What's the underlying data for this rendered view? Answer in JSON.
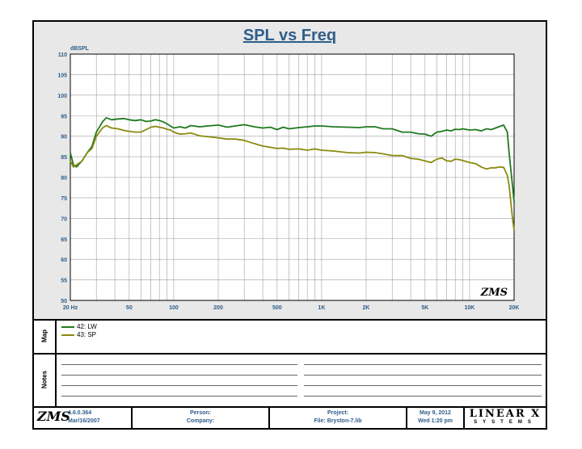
{
  "chart_data": {
    "type": "line",
    "title": "SPL vs Freq",
    "ylabel": "dBSPL",
    "xlabel": "",
    "x_scale": "log",
    "xlim": [
      20,
      20000
    ],
    "ylim": [
      50,
      110
    ],
    "grid": true,
    "legend_placement": "bottom panel",
    "y_ticks": [
      "50",
      "55",
      "60",
      "65",
      "70",
      "75",
      "80",
      "85",
      "90",
      "95",
      "100",
      "105",
      "110"
    ],
    "x_ticks": [
      {
        "value": 20,
        "label": "20 Hz"
      },
      {
        "value": 50,
        "label": "50"
      },
      {
        "value": 100,
        "label": "100"
      },
      {
        "value": 200,
        "label": "200"
      },
      {
        "value": 500,
        "label": "500"
      },
      {
        "value": 1000,
        "label": "1K"
      },
      {
        "value": 2000,
        "label": "2K"
      },
      {
        "value": 5000,
        "label": "5K"
      },
      {
        "value": 10000,
        "label": "10K"
      },
      {
        "value": 20000,
        "label": "20K"
      }
    ],
    "series": [
      {
        "name": "42: LW",
        "color": "#1f7a1f",
        "points": [
          [
            20,
            86
          ],
          [
            21,
            83
          ],
          [
            22,
            82.5
          ],
          [
            24,
            84
          ],
          [
            26,
            86
          ],
          [
            28,
            87.5
          ],
          [
            30,
            91
          ],
          [
            33,
            93.5
          ],
          [
            35,
            94.5
          ],
          [
            38,
            94
          ],
          [
            42,
            94.2
          ],
          [
            46,
            94.3
          ],
          [
            50,
            94
          ],
          [
            55,
            93.8
          ],
          [
            60,
            94
          ],
          [
            65,
            93.6
          ],
          [
            70,
            93.7
          ],
          [
            75,
            94
          ],
          [
            80,
            93.8
          ],
          [
            85,
            93.5
          ],
          [
            90,
            93
          ],
          [
            95,
            92.5
          ],
          [
            100,
            92
          ],
          [
            110,
            92.3
          ],
          [
            120,
            92
          ],
          [
            130,
            92.6
          ],
          [
            150,
            92.3
          ],
          [
            170,
            92.5
          ],
          [
            200,
            92.7
          ],
          [
            230,
            92.2
          ],
          [
            260,
            92.5
          ],
          [
            300,
            92.8
          ],
          [
            350,
            92.3
          ],
          [
            400,
            92
          ],
          [
            450,
            92.2
          ],
          [
            500,
            91.6
          ],
          [
            550,
            92.2
          ],
          [
            600,
            91.8
          ],
          [
            700,
            92.1
          ],
          [
            800,
            92.3
          ],
          [
            900,
            92.5
          ],
          [
            1000,
            92.5
          ],
          [
            1200,
            92.3
          ],
          [
            1500,
            92.2
          ],
          [
            1800,
            92.1
          ],
          [
            2000,
            92.3
          ],
          [
            2300,
            92.3
          ],
          [
            2600,
            91.8
          ],
          [
            3000,
            91.8
          ],
          [
            3500,
            91
          ],
          [
            4000,
            91
          ],
          [
            4500,
            90.6
          ],
          [
            5000,
            90.5
          ],
          [
            5500,
            90
          ],
          [
            6000,
            91
          ],
          [
            6500,
            91.2
          ],
          [
            7000,
            91.5
          ],
          [
            7500,
            91.3
          ],
          [
            8000,
            91.7
          ],
          [
            8500,
            91.6
          ],
          [
            9000,
            91.8
          ],
          [
            10000,
            91.5
          ],
          [
            11000,
            91.6
          ],
          [
            12000,
            91.3
          ],
          [
            13000,
            91.8
          ],
          [
            14000,
            91.6
          ],
          [
            15000,
            92
          ],
          [
            16000,
            92.4
          ],
          [
            17000,
            92.7
          ],
          [
            18000,
            91
          ],
          [
            18500,
            86
          ],
          [
            19000,
            82
          ],
          [
            19500,
            78
          ],
          [
            20000,
            74
          ]
        ]
      },
      {
        "name": "43: SP",
        "color": "#8a8a10",
        "points": [
          [
            20,
            84
          ],
          [
            21,
            82.5
          ],
          [
            22,
            83
          ],
          [
            24,
            84
          ],
          [
            26,
            86
          ],
          [
            28,
            87
          ],
          [
            30,
            90
          ],
          [
            33,
            92
          ],
          [
            35,
            92.6
          ],
          [
            38,
            92
          ],
          [
            42,
            91.8
          ],
          [
            46,
            91.4
          ],
          [
            50,
            91.2
          ],
          [
            55,
            91
          ],
          [
            60,
            91
          ],
          [
            65,
            91.6
          ],
          [
            70,
            92.2
          ],
          [
            75,
            92.4
          ],
          [
            80,
            92.2
          ],
          [
            85,
            92
          ],
          [
            90,
            91.7
          ],
          [
            95,
            91.5
          ],
          [
            100,
            91
          ],
          [
            110,
            90.5
          ],
          [
            120,
            90.6
          ],
          [
            130,
            90.8
          ],
          [
            150,
            90.1
          ],
          [
            170,
            89.9
          ],
          [
            200,
            89.6
          ],
          [
            230,
            89.3
          ],
          [
            260,
            89.3
          ],
          [
            300,
            89
          ],
          [
            350,
            88.2
          ],
          [
            400,
            87.6
          ],
          [
            450,
            87.3
          ],
          [
            500,
            87
          ],
          [
            550,
            87.1
          ],
          [
            600,
            86.8
          ],
          [
            700,
            86.9
          ],
          [
            800,
            86.6
          ],
          [
            900,
            86.9
          ],
          [
            1000,
            86.6
          ],
          [
            1200,
            86.4
          ],
          [
            1500,
            86
          ],
          [
            1800,
            85.9
          ],
          [
            2000,
            86.1
          ],
          [
            2300,
            86
          ],
          [
            2600,
            85.7
          ],
          [
            3000,
            85.3
          ],
          [
            3500,
            85.3
          ],
          [
            4000,
            84.6
          ],
          [
            4500,
            84.4
          ],
          [
            5000,
            84
          ],
          [
            5500,
            83.6
          ],
          [
            6000,
            84.4
          ],
          [
            6500,
            84.7
          ],
          [
            7000,
            84
          ],
          [
            7500,
            83.9
          ],
          [
            8000,
            84.4
          ],
          [
            8500,
            84.3
          ],
          [
            9000,
            84.1
          ],
          [
            10000,
            83.6
          ],
          [
            11000,
            83.3
          ],
          [
            12000,
            82.5
          ],
          [
            13000,
            82
          ],
          [
            14000,
            82.3
          ],
          [
            15000,
            82.3
          ],
          [
            16000,
            82.5
          ],
          [
            17000,
            82.4
          ],
          [
            18000,
            80.5
          ],
          [
            18500,
            78
          ],
          [
            19000,
            74
          ],
          [
            19500,
            70
          ],
          [
            20000,
            67
          ]
        ]
      }
    ]
  },
  "map": {
    "label": "Map",
    "entries": [
      {
        "name": "42: LW",
        "color": "#1f7a1f"
      },
      {
        "name": "43: SP",
        "color": "#8a8a10"
      }
    ]
  },
  "notes": {
    "label": "Notes"
  },
  "watermark": "ZMS",
  "footer": {
    "version": "4.6.0.364",
    "date": "Mar/16/2007",
    "person_label": "Person:",
    "company_label": "Company:",
    "project_label": "Project:",
    "file": "File: Bryston-7.lib",
    "print_date": "May  9, 2012",
    "print_time": "Wed  1:20 pm",
    "brand": "LINEAR X",
    "brand_sub": "SYSTEMS"
  }
}
